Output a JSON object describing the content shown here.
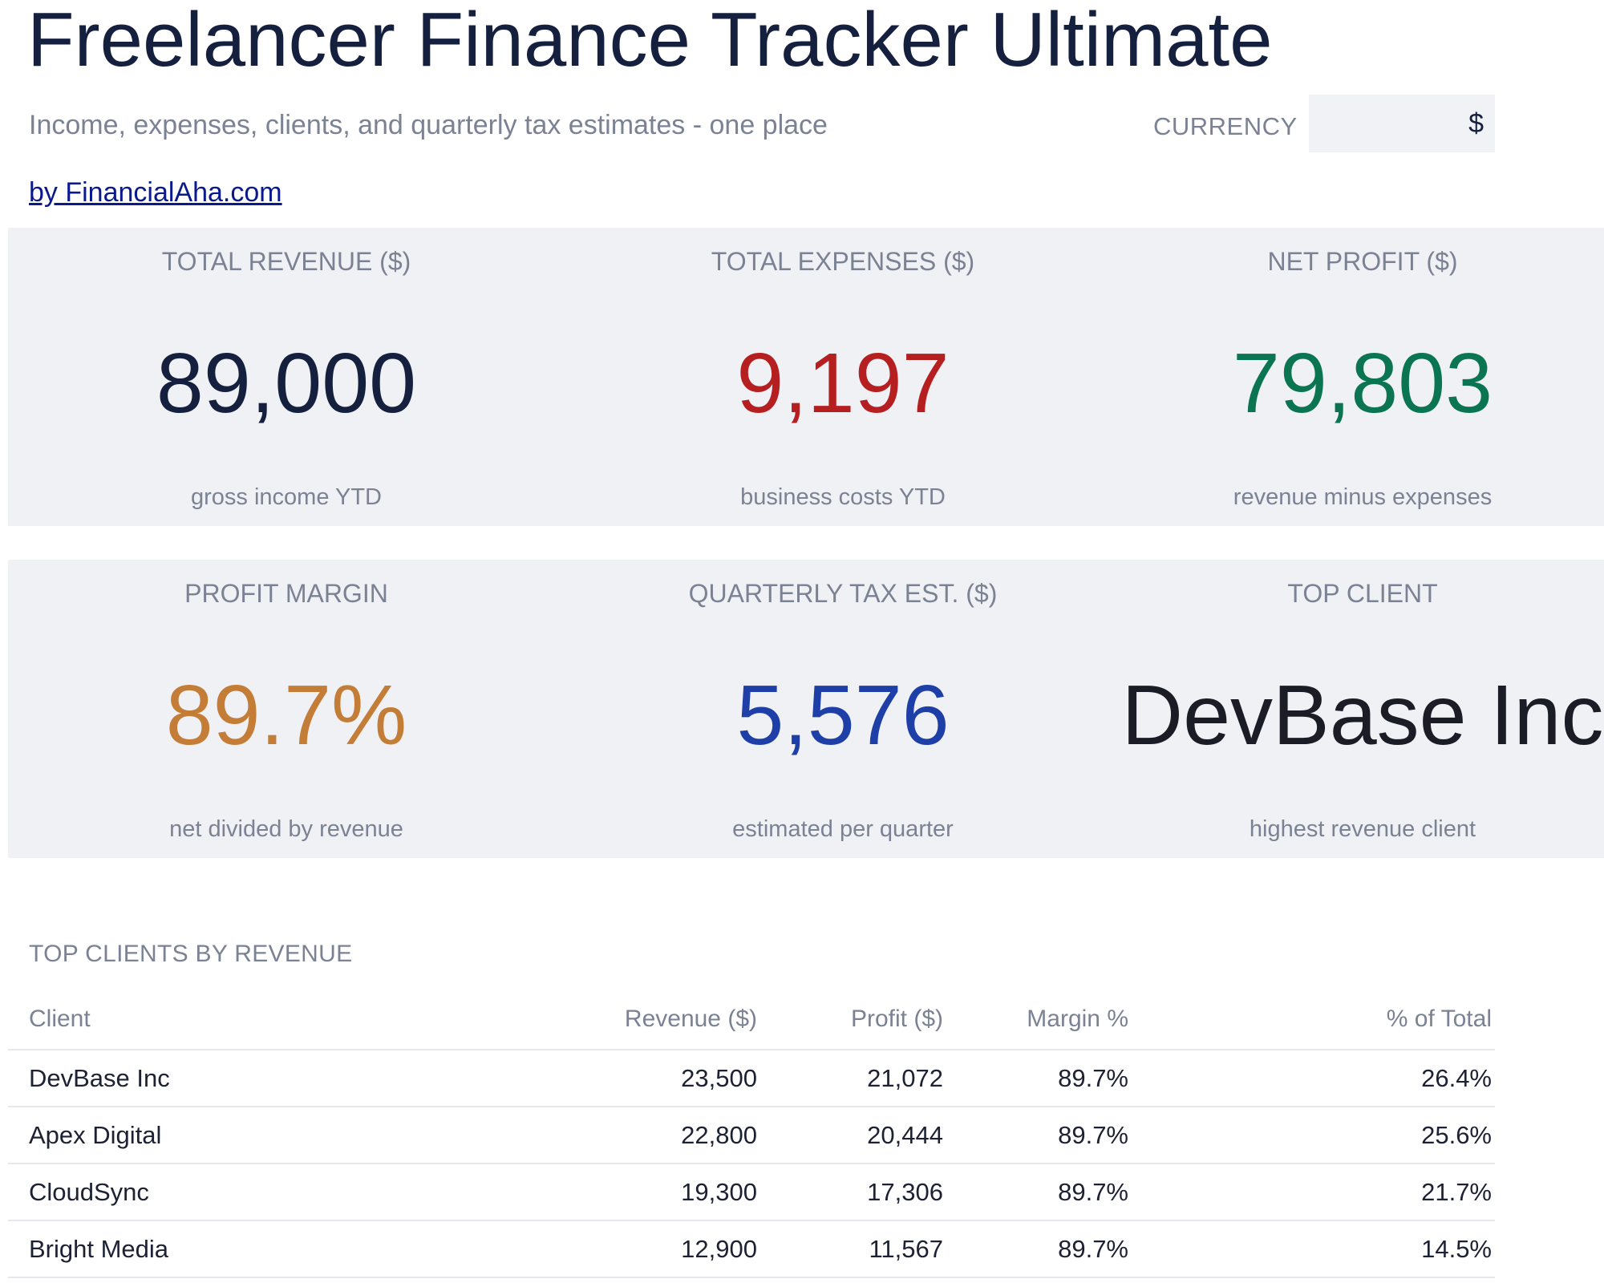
{
  "header": {
    "title": "Freelancer Finance Tracker Ultimate",
    "subtitle": "Income, expenses, clients, and quarterly tax estimates - one place",
    "byline": "by FinancialAha.com",
    "currency_label": "CURRENCY",
    "currency_value": "$"
  },
  "kpis": {
    "total_revenue": {
      "label": "TOTAL REVENUE ($)",
      "value": "89,000",
      "sub": "gross income YTD",
      "color": "#15203f"
    },
    "total_expenses": {
      "label": "TOTAL EXPENSES ($)",
      "value": "9,197",
      "sub": "business costs YTD",
      "color": "#b61f1f"
    },
    "net_profit": {
      "label": "NET PROFIT ($)",
      "value": "79,803",
      "sub": "revenue minus expenses",
      "color": "#0b7552"
    },
    "profit_margin": {
      "label": "PROFIT MARGIN",
      "value": "89.7%",
      "sub": "net divided by revenue",
      "color": "#c47d37"
    },
    "quarterly_tax": {
      "label": "QUARTERLY TAX EST. ($)",
      "value": "5,576",
      "sub": "estimated per quarter",
      "color": "#1e3fa7"
    },
    "top_client": {
      "label": "TOP CLIENT",
      "value": "DevBase Inc",
      "sub": "highest revenue client",
      "color": "#1a1c26"
    }
  },
  "top_clients": {
    "title": "TOP CLIENTS BY REVENUE",
    "columns": {
      "client": "Client",
      "revenue": "Revenue ($)",
      "profit": "Profit ($)",
      "margin": "Margin %",
      "share": "% of Total"
    },
    "rows": [
      {
        "client": "DevBase Inc",
        "revenue": "23,500",
        "profit": "21,072",
        "margin": "89.7%",
        "share": "26.4%"
      },
      {
        "client": "Apex Digital",
        "revenue": "22,800",
        "profit": "20,444",
        "margin": "89.7%",
        "share": "25.6%"
      },
      {
        "client": "CloudSync",
        "revenue": "19,300",
        "profit": "17,306",
        "margin": "89.7%",
        "share": "21.7%"
      },
      {
        "client": "Bright Media",
        "revenue": "12,900",
        "profit": "11,567",
        "margin": "89.7%",
        "share": "14.5%"
      }
    ]
  }
}
